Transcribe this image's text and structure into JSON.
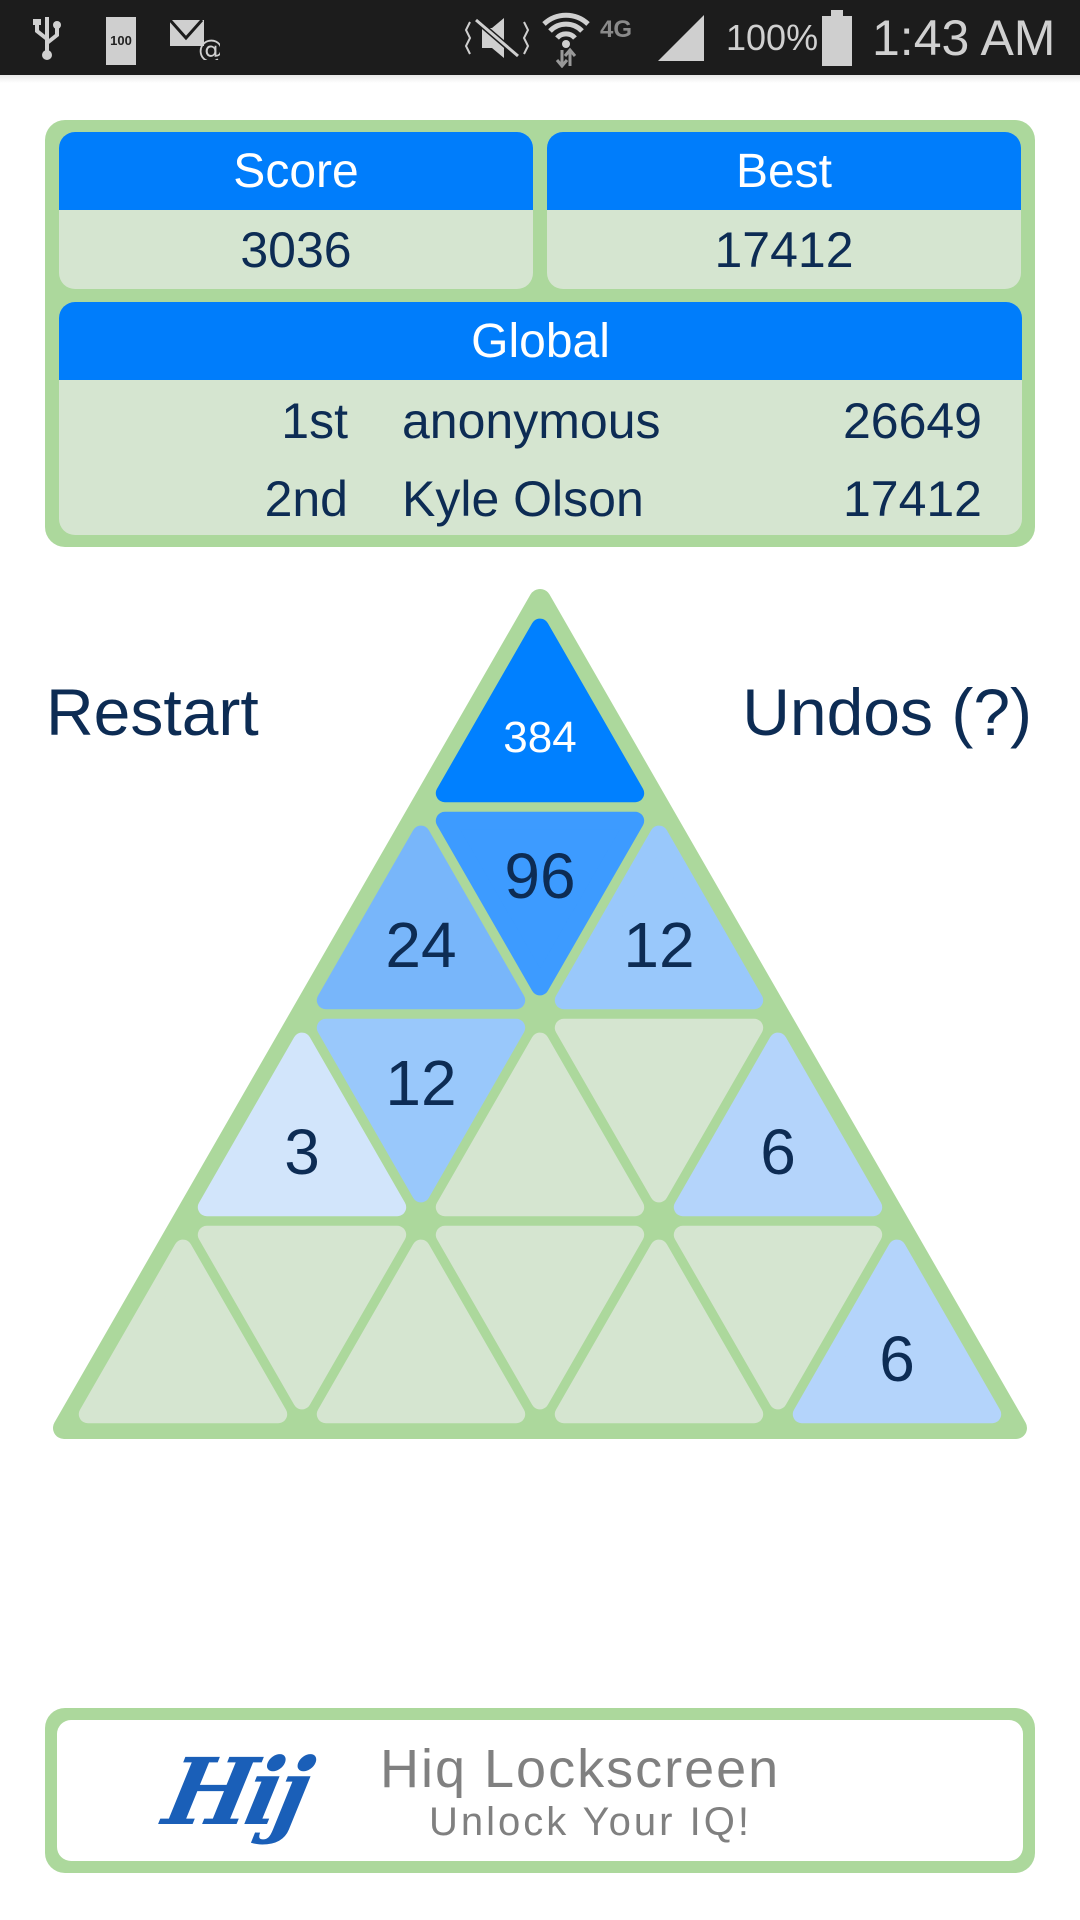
{
  "status_bar": {
    "left_icons": [
      "usb-icon",
      "battery-100-icon",
      "email-error-icon"
    ],
    "battery_small_label": "100",
    "right_icons": [
      "mute-icon",
      "wifi-icon",
      "4g-lte-icon",
      "signal-icon",
      "battery-icon"
    ],
    "network": "4G",
    "battery_percent": "100%",
    "time": "1:43 AM"
  },
  "scores": {
    "score_label": "Score",
    "score_value": "3036",
    "best_label": "Best",
    "best_value": "17412",
    "global_label": "Global",
    "global_rows": [
      {
        "rank": "1st",
        "name": "anonymous",
        "score": "26649"
      },
      {
        "rank": "2nd",
        "name": "Kyle Olson",
        "score": "17412"
      }
    ]
  },
  "controls": {
    "restart_label": "Restart",
    "undos_label": "Undos (?)"
  },
  "board": {
    "rows": [
      [
        "384"
      ],
      [
        "24",
        "96",
        "12"
      ],
      [
        "3",
        "12",
        "",
        "",
        "6"
      ],
      [
        "",
        "",
        "",
        "",
        "",
        "",
        "6"
      ]
    ],
    "colors": {
      "border": "#acd89c",
      "empty": "#d5e5d0",
      "3": "#d2e5fb",
      "6": "#b4d4fb",
      "12": "#99c8fb",
      "24": "#78b6fa",
      "96": "#3d9bff",
      "384": "#0080ff"
    }
  },
  "ad": {
    "logo": "Hij",
    "title": "Hiq Lockscreen",
    "tagline": "Unlock Your IQ!"
  }
}
